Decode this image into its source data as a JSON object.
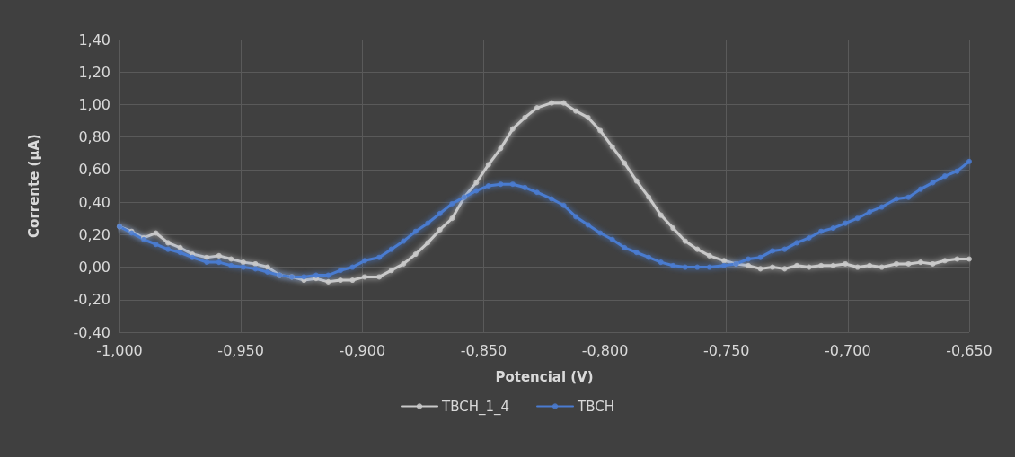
{
  "chart_data": {
    "type": "line",
    "xlabel": "Potencial (V)",
    "ylabel": "Corrente (µA)",
    "x": [
      -1.0,
      -0.995,
      -0.99,
      -0.985,
      -0.98,
      -0.975,
      -0.97,
      -0.964,
      -0.959,
      -0.954,
      -0.949,
      -0.944,
      -0.939,
      -0.934,
      -0.929,
      -0.924,
      -0.919,
      -0.914,
      -0.909,
      -0.904,
      -0.899,
      -0.893,
      -0.888,
      -0.883,
      -0.878,
      -0.873,
      -0.868,
      -0.863,
      -0.858,
      -0.853,
      -0.848,
      -0.843,
      -0.838,
      -0.833,
      -0.828,
      -0.822,
      -0.817,
      -0.812,
      -0.807,
      -0.802,
      -0.797,
      -0.792,
      -0.787,
      -0.782,
      -0.777,
      -0.772,
      -0.767,
      -0.762,
      -0.757,
      -0.751,
      -0.746,
      -0.741,
      -0.736,
      -0.731,
      -0.726,
      -0.721,
      -0.716,
      -0.711,
      -0.706,
      -0.701,
      -0.696,
      -0.691,
      -0.686,
      -0.68,
      -0.675,
      -0.67,
      -0.665,
      -0.66,
      -0.655,
      -0.65
    ],
    "series": [
      {
        "name": "TBCH_1_4",
        "color": "#c9c9c9",
        "values": [
          0.25,
          0.22,
          0.18,
          0.21,
          0.15,
          0.12,
          0.08,
          0.06,
          0.07,
          0.05,
          0.03,
          0.02,
          0.0,
          -0.05,
          -0.06,
          -0.08,
          -0.07,
          -0.09,
          -0.08,
          -0.08,
          -0.06,
          -0.06,
          -0.02,
          0.02,
          0.08,
          0.15,
          0.23,
          0.3,
          0.43,
          0.52,
          0.63,
          0.73,
          0.85,
          0.92,
          0.98,
          1.01,
          1.01,
          0.96,
          0.92,
          0.84,
          0.74,
          0.64,
          0.53,
          0.43,
          0.32,
          0.24,
          0.16,
          0.11,
          0.07,
          0.04,
          0.02,
          0.01,
          -0.01,
          0.0,
          -0.01,
          0.01,
          0.0,
          0.01,
          0.01,
          0.02,
          0.0,
          0.01,
          0.0,
          0.02,
          0.02,
          0.03,
          0.02,
          0.04,
          0.05,
          0.05
        ]
      },
      {
        "name": "TBCH",
        "color": "#4a7bd0",
        "values": [
          0.25,
          0.21,
          0.17,
          0.14,
          0.11,
          0.09,
          0.06,
          0.03,
          0.03,
          0.01,
          0.0,
          -0.01,
          -0.03,
          -0.05,
          -0.06,
          -0.06,
          -0.05,
          -0.05,
          -0.02,
          0.0,
          0.04,
          0.06,
          0.11,
          0.16,
          0.22,
          0.27,
          0.33,
          0.39,
          0.43,
          0.47,
          0.5,
          0.51,
          0.51,
          0.49,
          0.46,
          0.42,
          0.38,
          0.31,
          0.26,
          0.21,
          0.17,
          0.12,
          0.09,
          0.06,
          0.03,
          0.01,
          0.0,
          0.0,
          0.0,
          0.01,
          0.02,
          0.05,
          0.06,
          0.1,
          0.11,
          0.15,
          0.18,
          0.22,
          0.24,
          0.27,
          0.3,
          0.34,
          0.37,
          0.42,
          0.43,
          0.48,
          0.52,
          0.56,
          0.59,
          0.65
        ]
      }
    ],
    "xlim": [
      -1.0,
      -0.65
    ],
    "xticks": [
      {
        "value": -1.0,
        "label": "-1,000"
      },
      {
        "value": -0.95,
        "label": "-0,950"
      },
      {
        "value": -0.9,
        "label": "-0,900"
      },
      {
        "value": -0.85,
        "label": "-0,850"
      },
      {
        "value": -0.8,
        "label": "-0,800"
      },
      {
        "value": -0.75,
        "label": "-0,750"
      },
      {
        "value": -0.7,
        "label": "-0,700"
      },
      {
        "value": -0.65,
        "label": "-0,650"
      }
    ],
    "ylim": [
      -0.4,
      1.4
    ],
    "yticks": [
      {
        "value": -0.4,
        "label": "-0,40"
      },
      {
        "value": -0.2,
        "label": "-0,20"
      },
      {
        "value": 0,
        "label": "0,00"
      },
      {
        "value": 0.2,
        "label": "0,20"
      },
      {
        "value": 0.4,
        "label": "0,40"
      },
      {
        "value": 0.6,
        "label": "0,60"
      },
      {
        "value": 0.8,
        "label": "0,80"
      },
      {
        "value": 1.0,
        "label": "1,00"
      },
      {
        "value": 1.2,
        "label": "1,20"
      },
      {
        "value": 1.4,
        "label": "1,40"
      }
    ],
    "grid": true,
    "legend": "bottom",
    "marker": "circle",
    "line_style": "solid"
  }
}
